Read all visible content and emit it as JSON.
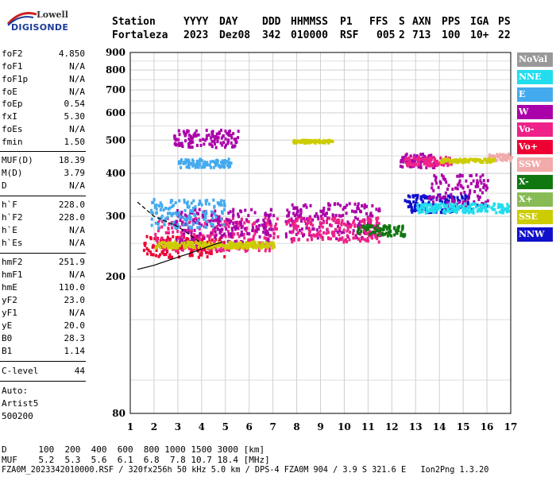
{
  "logo": {
    "brand": "Lowell",
    "product": "DIGISONDE"
  },
  "header": {
    "labels": [
      "Station",
      "YYYY",
      "DAY",
      "DDD",
      "HHMMSS",
      "P1",
      "FFS",
      "S",
      "AXN",
      "PPS",
      "IGA",
      "PS"
    ],
    "values": [
      "Fortaleza",
      "2023",
      "Dez08",
      "342",
      "010000",
      "RSF",
      "005",
      "2",
      "713",
      "100",
      "10+",
      "22"
    ]
  },
  "params_group1": [
    {
      "k": "foF2",
      "v": "4.850"
    },
    {
      "k": "foF1",
      "v": "N/A"
    },
    {
      "k": "foF1p",
      "v": "N/A"
    },
    {
      "k": "foE",
      "v": "N/A"
    },
    {
      "k": "foEp",
      "v": "0.54"
    },
    {
      "k": "fxI",
      "v": "5.30"
    },
    {
      "k": "foEs",
      "v": "N/A"
    },
    {
      "k": "fmin",
      "v": "1.50"
    }
  ],
  "params_group2": [
    {
      "k": "MUF(D)",
      "v": "18.39"
    },
    {
      "k": "M(D)",
      "v": "3.79"
    },
    {
      "k": "D",
      "v": "N/A"
    }
  ],
  "params_group3": [
    {
      "k": "h`F",
      "v": "228.0"
    },
    {
      "k": "h`F2",
      "v": "228.0"
    },
    {
      "k": "h`E",
      "v": "N/A"
    },
    {
      "k": "h`Es",
      "v": "N/A"
    }
  ],
  "params_group4": [
    {
      "k": "hmF2",
      "v": "251.9"
    },
    {
      "k": "hmF1",
      "v": "N/A"
    },
    {
      "k": "hmE",
      "v": "110.0"
    },
    {
      "k": "yF2",
      "v": "23.0"
    },
    {
      "k": "yF1",
      "v": "N/A"
    },
    {
      "k": "yE",
      "v": "20.0"
    },
    {
      "k": "B0",
      "v": "28.3"
    },
    {
      "k": "B1",
      "v": "1.14"
    }
  ],
  "clevel": {
    "k": "C-level",
    "v": "44"
  },
  "auto": {
    "line1": "Auto:",
    "line2": "Artist5",
    "line3": "500200"
  },
  "legend": [
    {
      "label": "NoVal",
      "color": "#999999"
    },
    {
      "label": "NNE",
      "color": "#22ddee"
    },
    {
      "label": "E",
      "color": "#44aaee"
    },
    {
      "label": "W",
      "color": "#aa00aa"
    },
    {
      "label": "Vo-",
      "color": "#ee2288"
    },
    {
      "label": "Vo+",
      "color": "#ee0033"
    },
    {
      "label": "SSW",
      "color": "#f2aaaa"
    },
    {
      "label": "X-",
      "color": "#117711"
    },
    {
      "label": "X+",
      "color": "#88bb55"
    },
    {
      "label": "SSE",
      "color": "#cccc00"
    },
    {
      "label": "NNW",
      "color": "#1111cc"
    }
  ],
  "bottom": {
    "d_line": "D      100  200  400  600  800 1000 1500 3000 [km]",
    "muf_line": "MUF    5.2  5.3  5.6  6.1  6.8  7.8 10.7 18.4 [MHz]",
    "footer": "FZA0M_2023342010000.RSF / 320fx256h 50 kHz 5.0 km / DPS-4 FZA0M 904 / 3.9 S 321.6 E   Ion2Png 1.3.20"
  },
  "chart_data": {
    "type": "scatter",
    "title": "",
    "xlabel": "",
    "ylabel": "",
    "xlim": [
      1,
      17
    ],
    "ylim": [
      80,
      900
    ],
    "x_ticks": [
      "1",
      "2",
      "3",
      "4",
      "5",
      "6",
      "7",
      "8",
      "9",
      "10",
      "11",
      "12",
      "13",
      "14",
      "15",
      "16",
      "17"
    ],
    "y_ticks": [
      "80",
      "200",
      "300",
      "400",
      "500",
      "600",
      "700",
      "800",
      "900"
    ],
    "y_scale": "log",
    "grid": true,
    "trace_lines": [
      {
        "name": "",
        "style": "solid",
        "x": [
          1.3,
          2.0,
          2.5,
          3.0,
          3.5,
          4.0,
          4.5,
          4.85
        ],
        "y": [
          210,
          216,
          222,
          228,
          234,
          241,
          248,
          252
        ]
      },
      {
        "name": "",
        "style": "dashed",
        "x": [
          1.3,
          2.0,
          2.5,
          3.0,
          3.5,
          4.0
        ],
        "y": [
          330,
          300,
          290,
          280,
          265,
          250
        ]
      }
    ],
    "clusters": [
      {
        "series": "Vo+",
        "x": [
          1.5,
          5.0
        ],
        "y": [
          230,
          265
        ]
      },
      {
        "series": "Vo-",
        "x": [
          2.0,
          7.2
        ],
        "y": [
          240,
          300
        ]
      },
      {
        "series": "W",
        "x": [
          2.8,
          7.0
        ],
        "y": [
          250,
          320
        ]
      },
      {
        "series": "SSE",
        "x": [
          2.0,
          7.0
        ],
        "y": [
          245,
          255
        ]
      },
      {
        "series": "E",
        "x": [
          1.8,
          5.0
        ],
        "y": [
          280,
          340
        ]
      },
      {
        "series": "W",
        "x": [
          7.5,
          11.5
        ],
        "y": [
          260,
          330
        ]
      },
      {
        "series": "Vo-",
        "x": [
          7.5,
          11.5
        ],
        "y": [
          255,
          300
        ]
      },
      {
        "series": "X-",
        "x": [
          10.5,
          12.5
        ],
        "y": [
          265,
          285
        ]
      },
      {
        "series": "W",
        "x": [
          12.3,
          13.8
        ],
        "y": [
          420,
          460
        ]
      },
      {
        "series": "Vo-",
        "x": [
          12.5,
          14.5
        ],
        "y": [
          425,
          450
        ]
      },
      {
        "series": "NNW",
        "x": [
          12.5,
          15.3
        ],
        "y": [
          310,
          350
        ]
      },
      {
        "series": "W",
        "x": [
          13.5,
          16.0
        ],
        "y": [
          320,
          400
        ]
      },
      {
        "series": "NNE",
        "x": [
          13.0,
          16.9
        ],
        "y": [
          310,
          330
        ]
      },
      {
        "series": "W",
        "x": [
          2.8,
          5.5
        ],
        "y": [
          480,
          540
        ]
      },
      {
        "series": "E",
        "x": [
          3.0,
          5.2
        ],
        "y": [
          420,
          445
        ]
      },
      {
        "series": "SSE",
        "x": [
          7.8,
          9.5
        ],
        "y": [
          495,
          505
        ]
      },
      {
        "series": "SSW",
        "x": [
          16.0,
          17.0
        ],
        "y": [
          440,
          460
        ]
      },
      {
        "series": "SSE",
        "x": [
          14.0,
          16.3
        ],
        "y": [
          435,
          445
        ]
      }
    ]
  }
}
